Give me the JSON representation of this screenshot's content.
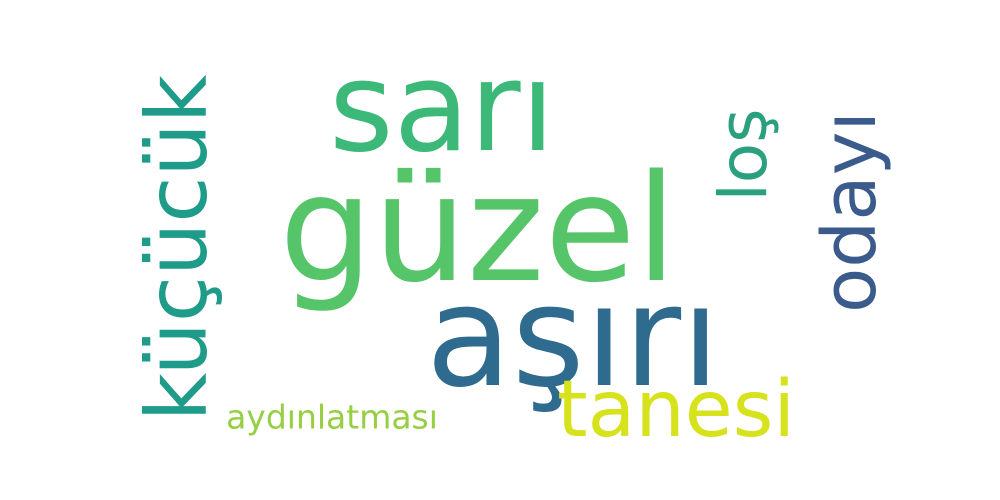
{
  "words": {
    "sari": {
      "text": "sarı",
      "color": "#3cb878"
    },
    "guzel": {
      "text": "güzel",
      "color": "#56c569"
    },
    "asiri": {
      "text": "aşırı",
      "color": "#2f6a8f"
    },
    "tanesi": {
      "text": "tanesi",
      "color": "#d6e21b"
    },
    "kucucuk": {
      "text": "küçücük",
      "color": "#1f9b8a"
    },
    "los": {
      "text": "loş",
      "color": "#2aa07e"
    },
    "odayi": {
      "text": "odayı",
      "color": "#3b5b8c"
    },
    "aydinlatmasi": {
      "text": "aydınlatması",
      "color": "#97cf43"
    }
  }
}
